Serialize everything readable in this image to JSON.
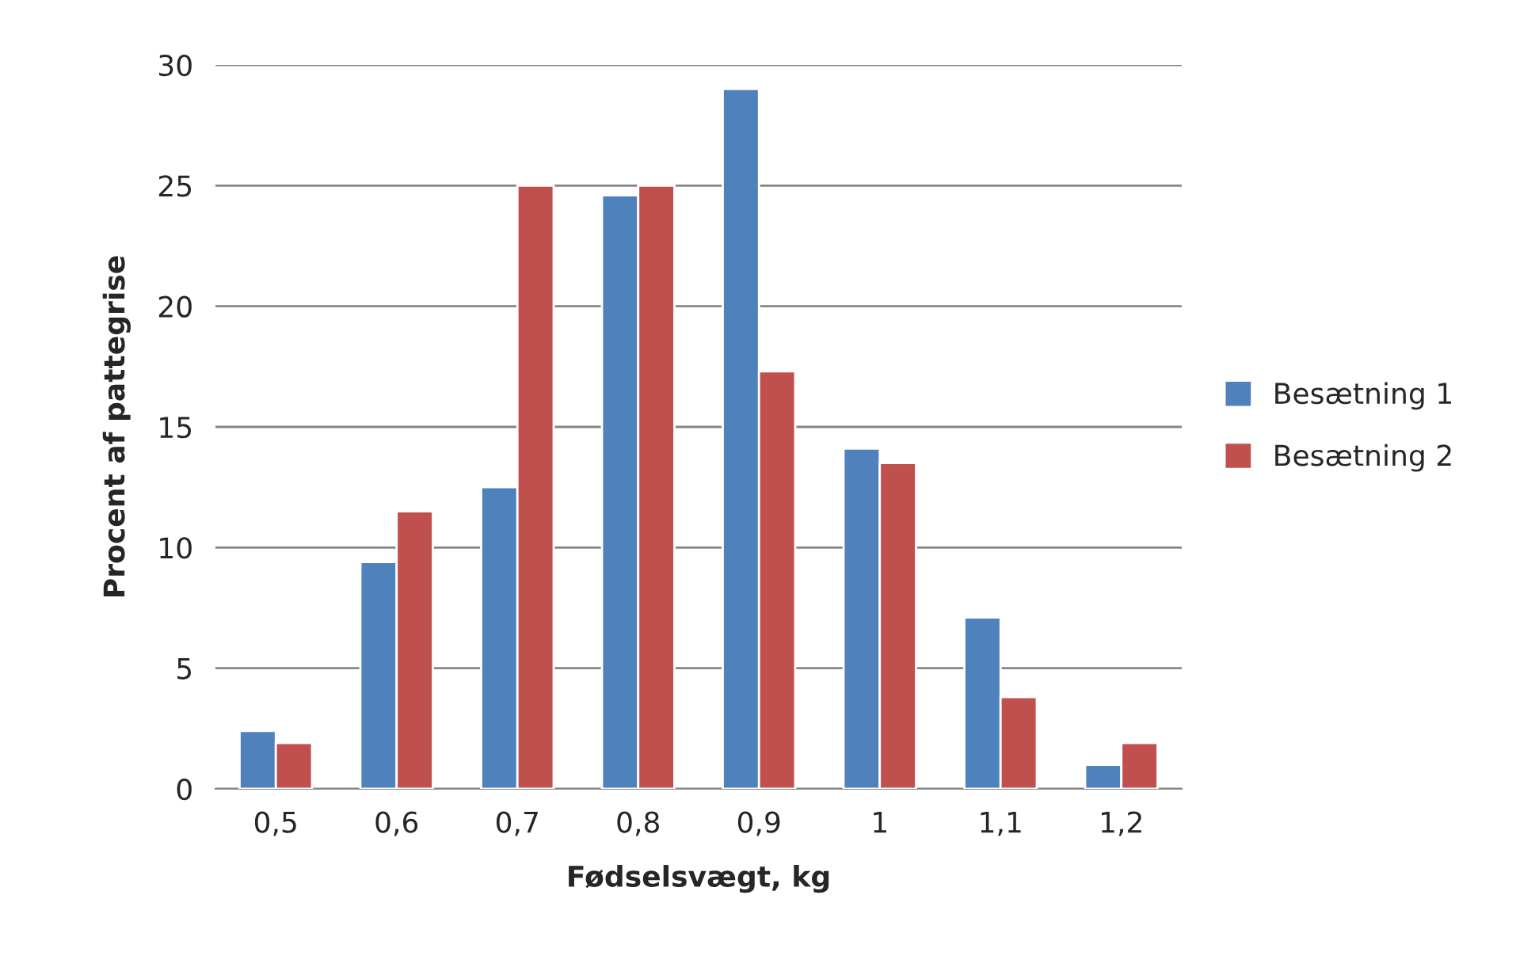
{
  "chart_data": {
    "type": "bar",
    "xlabel": "Fødselsvægt, kg",
    "ylabel": "Procent af pattegrise",
    "categories": [
      "0,5",
      "0,6",
      "0,7",
      "0,8",
      "0,9",
      "1",
      "1,1",
      "1,2"
    ],
    "series": [
      {
        "name": "Besætning 1",
        "color": "#4f81bd",
        "values": [
          2.4,
          9.4,
          12.5,
          24.6,
          29.0,
          14.1,
          7.1,
          1.0
        ]
      },
      {
        "name": "Besætning 2",
        "color": "#c0504d",
        "values": [
          1.9,
          11.5,
          25.0,
          25.0,
          17.3,
          13.5,
          3.8,
          1.9
        ]
      }
    ],
    "ylim": [
      0,
      30
    ],
    "yticks": [
      0,
      5,
      10,
      15,
      20,
      25,
      30
    ],
    "grid": "y",
    "legend": "right"
  }
}
